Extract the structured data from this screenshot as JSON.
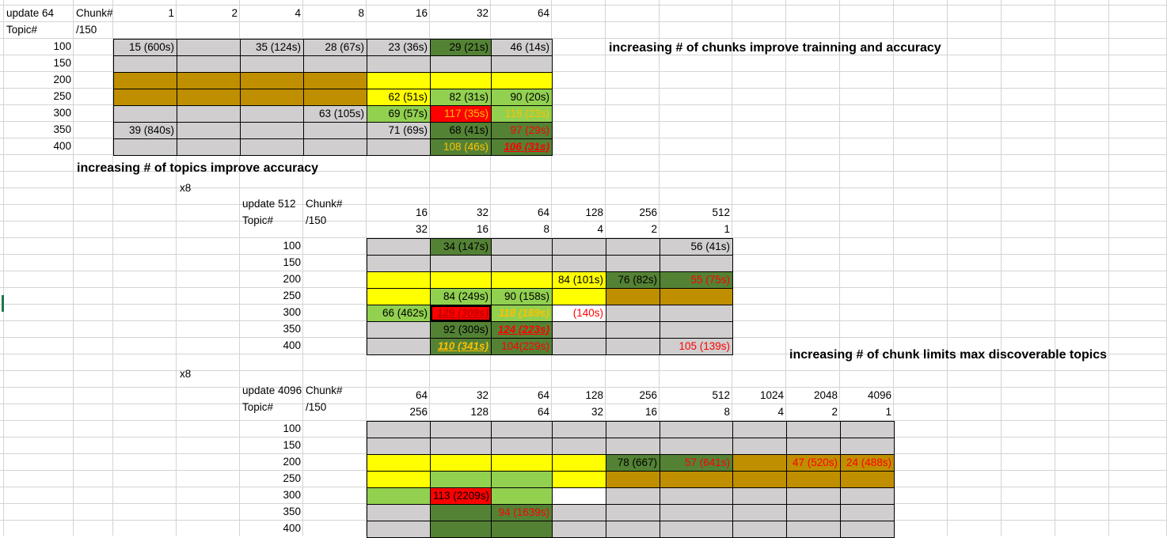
{
  "colors": {
    "gray": "#d0cece",
    "dark_yellow": "#bf8f00",
    "yellow": "#ffff00",
    "light_green": "#92d050",
    "dark_green": "#548235",
    "red": "#ff0000",
    "white": "#ffffff",
    "gridline": "#d4d4d4",
    "cell_border": "#000000",
    "text_red": "#ff0000",
    "text_orange": "#ffc000",
    "text_dark_red": "#c00000"
  },
  "headings": {
    "chunks_note": "increasing # of chunks improve trainning and accuracy",
    "topics_note": "increasing # of topics improve accuracy",
    "limits_note": "increasing # of chunk limits max discoverable topics"
  },
  "table1": {
    "label_update": "update 64",
    "label_chunk": "Chunk#",
    "label_topic": "Topic#",
    "label_div": "/150",
    "chunks": [
      "1",
      "2",
      "4",
      "8",
      "16",
      "32",
      "64"
    ],
    "topics": [
      "100",
      "150",
      "200",
      "250",
      "300",
      "350",
      "400"
    ],
    "cells": [
      [
        "15 (600s)",
        "",
        "35 (124s)",
        "28 (67s)",
        "23 (36s)",
        "29 (21s)",
        "46 (14s)"
      ],
      [
        "",
        "",
        "",
        "",
        "",
        "",
        ""
      ],
      [
        "",
        "",
        "",
        "",
        "",
        "",
        ""
      ],
      [
        "",
        "",
        "",
        "",
        "62 (51s)",
        "82 (31s)",
        "90 (20s)"
      ],
      [
        "",
        "",
        "",
        "63 (105s)",
        "69 (57s)",
        "117 (35s)",
        "118 (23s)"
      ],
      [
        "39 (840s)",
        "",
        "",
        "",
        "71 (69s)",
        "68 (41s)",
        "97 (29s)"
      ],
      [
        "",
        "",
        "",
        "",
        "",
        "108 (46s)",
        "106 (31s)"
      ]
    ],
    "fills": [
      [
        "gray",
        "gray",
        "gray",
        "gray",
        "gray",
        "dark_green",
        "gray"
      ],
      [
        "gray",
        "gray",
        "gray",
        "gray",
        "gray",
        "gray",
        "gray"
      ],
      [
        "dark_yellow",
        "dark_yellow",
        "dark_yellow",
        "dark_yellow",
        "yellow",
        "yellow",
        "yellow"
      ],
      [
        "dark_yellow",
        "dark_yellow",
        "dark_yellow",
        "dark_yellow",
        "yellow",
        "light_green",
        "light_green"
      ],
      [
        "gray",
        "gray",
        "gray",
        "gray",
        "light_green",
        "red",
        "light_green"
      ],
      [
        "gray",
        "gray",
        "gray",
        "gray",
        "gray",
        "dark_green",
        "dark_green"
      ],
      [
        "gray",
        "gray",
        "gray",
        "gray",
        "gray",
        "dark_green",
        "dark_green"
      ]
    ]
  },
  "table2": {
    "mult": "x8",
    "label_update": "update 512",
    "label_chunk": "Chunk#",
    "label_topic": "Topic#",
    "label_div": "/150",
    "chunks": [
      "16",
      "32",
      "64",
      "128",
      "256",
      "512"
    ],
    "per": [
      "32",
      "16",
      "8",
      "4",
      "2",
      "1"
    ],
    "topics": [
      "100",
      "150",
      "200",
      "250",
      "300",
      "350",
      "400"
    ],
    "cells": [
      [
        "",
        "34 (147s)",
        "",
        "",
        "",
        "56 (41s)"
      ],
      [
        "",
        "",
        "",
        "",
        "",
        ""
      ],
      [
        "",
        "",
        "",
        "84 (101s)",
        "76 (82s)",
        "55 (75s)"
      ],
      [
        "",
        "84 (249s)",
        "90 (158s)",
        "",
        "",
        ""
      ],
      [
        "66 (462s)",
        "129 (309s)",
        "118 (189s)",
        "(140s)",
        "",
        ""
      ],
      [
        "",
        "92 (309s)",
        "124 (223s)",
        "",
        "",
        ""
      ],
      [
        "",
        "110 (341s)",
        "104(229s)",
        "",
        "",
        "105 (139s)"
      ]
    ],
    "fills": [
      [
        "gray",
        "dark_green",
        "gray",
        "gray",
        "gray",
        "gray"
      ],
      [
        "gray",
        "gray",
        "gray",
        "gray",
        "gray",
        "gray"
      ],
      [
        "yellow",
        "yellow",
        "yellow",
        "yellow",
        "dark_green",
        "dark_green"
      ],
      [
        "yellow",
        "light_green",
        "light_green",
        "yellow",
        "dark_yellow",
        "dark_yellow"
      ],
      [
        "light_green",
        "red",
        "light_green",
        "white",
        "gray",
        "gray"
      ],
      [
        "gray",
        "dark_green",
        "dark_green",
        "gray",
        "gray",
        "gray"
      ],
      [
        "gray",
        "dark_green",
        "dark_green",
        "gray",
        "gray",
        "gray"
      ]
    ]
  },
  "table3": {
    "mult": "x8",
    "label_update": "update 4096",
    "label_chunk": "Chunk#",
    "label_topic": "Topic#",
    "label_div": "/150",
    "chunks": [
      "64",
      "32",
      "64",
      "128",
      "256",
      "512",
      "1024",
      "2048",
      "4096"
    ],
    "per": [
      "256",
      "128",
      "64",
      "32",
      "16",
      "8",
      "4",
      "2",
      "1"
    ],
    "topics": [
      "100",
      "150",
      "200",
      "250",
      "300",
      "350",
      "400"
    ],
    "cells": [
      [
        "",
        "",
        "",
        "",
        "",
        "",
        "",
        "",
        ""
      ],
      [
        "",
        "",
        "",
        "",
        "",
        "",
        "",
        "",
        ""
      ],
      [
        "",
        "",
        "",
        "",
        "78 (667)",
        "57 (641s)",
        "",
        "47 (520s)",
        "24 (488s)"
      ],
      [
        "",
        "",
        "",
        "",
        "",
        "",
        "",
        "",
        ""
      ],
      [
        "",
        "113 (2209s)",
        "",
        "",
        "",
        "",
        "",
        "",
        ""
      ],
      [
        "",
        "",
        "94 (1639s)",
        "",
        "",
        "",
        "",
        "",
        ""
      ],
      [
        "",
        "",
        "",
        "",
        "",
        "",
        "",
        "",
        ""
      ]
    ],
    "fills": [
      [
        "gray",
        "gray",
        "gray",
        "gray",
        "gray",
        "gray",
        "gray",
        "gray",
        "gray"
      ],
      [
        "gray",
        "gray",
        "gray",
        "gray",
        "gray",
        "gray",
        "gray",
        "gray",
        "gray"
      ],
      [
        "yellow",
        "yellow",
        "yellow",
        "yellow",
        "dark_green",
        "dark_green",
        "dark_yellow",
        "dark_yellow",
        "dark_yellow"
      ],
      [
        "yellow",
        "light_green",
        "light_green",
        "yellow",
        "dark_yellow",
        "dark_yellow",
        "dark_yellow",
        "dark_yellow",
        "dark_yellow"
      ],
      [
        "light_green",
        "red",
        "light_green",
        "white",
        "gray",
        "gray",
        "gray",
        "gray",
        "gray"
      ],
      [
        "gray",
        "dark_green",
        "dark_green",
        "gray",
        "gray",
        "gray",
        "gray",
        "gray",
        "gray"
      ],
      [
        "gray",
        "dark_green",
        "dark_green",
        "gray",
        "gray",
        "gray",
        "gray",
        "gray",
        "gray"
      ]
    ]
  }
}
